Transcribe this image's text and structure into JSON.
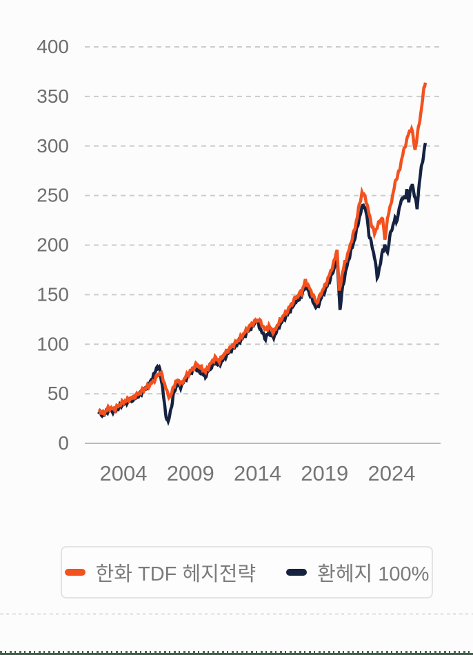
{
  "page": {
    "background": "#fcfcfc"
  },
  "legend": {
    "items": [
      {
        "label": "한화 TDF 헤지전략",
        "color": "#f3511e"
      },
      {
        "label": "환헤지 100%",
        "color": "#152240"
      }
    ]
  },
  "chart_data": {
    "type": "line",
    "title": "",
    "xlabel": "",
    "ylabel": "",
    "grid": "horizontal-dashed",
    "legend_position": "bottom",
    "y_ticks": [
      0,
      50,
      100,
      150,
      200,
      250,
      300,
      350,
      400
    ],
    "x_ticks": [
      2004,
      2009,
      2014,
      2019,
      2024
    ],
    "x_domain": [
      2002.15,
      2026.52
    ],
    "y_domain": [
      0,
      400
    ],
    "series": [
      {
        "name": "환헤지 100%",
        "color": "#152240",
        "points": [
          [
            2002.15,
            31
          ],
          [
            2002.51,
            28
          ],
          [
            2002.92,
            34
          ],
          [
            2003.33,
            32
          ],
          [
            2003.79,
            38
          ],
          [
            2004.31,
            42
          ],
          [
            2004.82,
            45
          ],
          [
            2005.34,
            50
          ],
          [
            2005.7,
            56
          ],
          [
            2006.01,
            62
          ],
          [
            2006.31,
            70
          ],
          [
            2006.52,
            78
          ],
          [
            2006.72,
            74
          ],
          [
            2006.93,
            55
          ],
          [
            2007.14,
            30
          ],
          [
            2007.34,
            21
          ],
          [
            2007.55,
            35
          ],
          [
            2007.75,
            50
          ],
          [
            2008.01,
            60
          ],
          [
            2008.27,
            57
          ],
          [
            2008.58,
            64
          ],
          [
            2008.94,
            70
          ],
          [
            2009.3,
            76
          ],
          [
            2009.71,
            72
          ],
          [
            2010.12,
            68
          ],
          [
            2010.48,
            76
          ],
          [
            2010.84,
            82
          ],
          [
            2011.15,
            79
          ],
          [
            2011.51,
            86
          ],
          [
            2011.87,
            92
          ],
          [
            2012.28,
            97
          ],
          [
            2012.69,
            103
          ],
          [
            2013.05,
            109
          ],
          [
            2013.41,
            115
          ],
          [
            2013.72,
            120
          ],
          [
            2013.92,
            124
          ],
          [
            2014.13,
            118
          ],
          [
            2014.33,
            112
          ],
          [
            2014.59,
            106
          ],
          [
            2014.85,
            112
          ],
          [
            2015.21,
            107
          ],
          [
            2015.52,
            116
          ],
          [
            2015.88,
            124
          ],
          [
            2016.24,
            130
          ],
          [
            2016.6,
            138
          ],
          [
            2016.91,
            144
          ],
          [
            2017.27,
            148
          ],
          [
            2017.57,
            160
          ],
          [
            2017.93,
            150
          ],
          [
            2018.24,
            140
          ],
          [
            2018.45,
            136
          ],
          [
            2018.76,
            147
          ],
          [
            2019.07,
            155
          ],
          [
            2019.37,
            164
          ],
          [
            2019.68,
            175
          ],
          [
            2019.94,
            188
          ],
          [
            2020.15,
            134
          ],
          [
            2020.35,
            158
          ],
          [
            2020.56,
            172
          ],
          [
            2020.76,
            184
          ],
          [
            2021.02,
            196
          ],
          [
            2021.28,
            208
          ],
          [
            2021.53,
            224
          ],
          [
            2021.89,
            242
          ],
          [
            2022.15,
            230
          ],
          [
            2022.31,
            211
          ],
          [
            2022.56,
            198
          ],
          [
            2022.77,
            185
          ],
          [
            2022.92,
            167
          ],
          [
            2023.18,
            182
          ],
          [
            2023.33,
            195
          ],
          [
            2023.49,
            199
          ],
          [
            2023.69,
            192
          ],
          [
            2023.85,
            208
          ],
          [
            2024.0,
            215
          ],
          [
            2024.1,
            220
          ],
          [
            2024.26,
            228
          ],
          [
            2024.36,
            222
          ],
          [
            2024.46,
            230
          ],
          [
            2024.62,
            240
          ],
          [
            2024.77,
            246
          ],
          [
            2024.87,
            250
          ],
          [
            2025.03,
            246
          ],
          [
            2025.13,
            256
          ],
          [
            2025.28,
            245
          ],
          [
            2025.44,
            258
          ],
          [
            2025.54,
            262
          ],
          [
            2025.7,
            250
          ],
          [
            2025.9,
            238
          ],
          [
            2026.06,
            262
          ],
          [
            2026.21,
            278
          ],
          [
            2026.37,
            290
          ],
          [
            2026.52,
            303
          ]
        ]
      },
      {
        "name": "한화 TDF 헤지전략",
        "color": "#f3511e",
        "points": [
          [
            2002.15,
            33
          ],
          [
            2002.51,
            30
          ],
          [
            2002.92,
            36
          ],
          [
            2003.33,
            34
          ],
          [
            2003.79,
            40
          ],
          [
            2004.31,
            44
          ],
          [
            2004.82,
            47
          ],
          [
            2005.34,
            52
          ],
          [
            2005.85,
            58
          ],
          [
            2006.21,
            62
          ],
          [
            2006.52,
            68
          ],
          [
            2006.78,
            72
          ],
          [
            2007.03,
            62
          ],
          [
            2007.29,
            50
          ],
          [
            2007.5,
            46
          ],
          [
            2007.75,
            58
          ],
          [
            2008.06,
            64
          ],
          [
            2008.32,
            60
          ],
          [
            2008.68,
            68
          ],
          [
            2009.09,
            74
          ],
          [
            2009.45,
            80
          ],
          [
            2009.81,
            76
          ],
          [
            2010.12,
            72
          ],
          [
            2010.48,
            80
          ],
          [
            2010.84,
            86
          ],
          [
            2011.15,
            83
          ],
          [
            2011.51,
            90
          ],
          [
            2011.87,
            95
          ],
          [
            2012.28,
            100
          ],
          [
            2012.69,
            106
          ],
          [
            2013.05,
            112
          ],
          [
            2013.41,
            118
          ],
          [
            2013.72,
            122
          ],
          [
            2014.08,
            125
          ],
          [
            2014.33,
            120
          ],
          [
            2014.59,
            114
          ],
          [
            2014.85,
            118
          ],
          [
            2015.21,
            112
          ],
          [
            2015.52,
            120
          ],
          [
            2015.88,
            128
          ],
          [
            2016.24,
            134
          ],
          [
            2016.6,
            142
          ],
          [
            2016.91,
            148
          ],
          [
            2017.27,
            152
          ],
          [
            2017.57,
            164
          ],
          [
            2017.93,
            155
          ],
          [
            2018.24,
            146
          ],
          [
            2018.45,
            142
          ],
          [
            2018.76,
            152
          ],
          [
            2019.07,
            160
          ],
          [
            2019.37,
            170
          ],
          [
            2019.68,
            182
          ],
          [
            2019.94,
            196
          ],
          [
            2020.09,
            152
          ],
          [
            2020.3,
            170
          ],
          [
            2020.51,
            182
          ],
          [
            2020.76,
            192
          ],
          [
            2021.02,
            205
          ],
          [
            2021.28,
            218
          ],
          [
            2021.53,
            236
          ],
          [
            2021.79,
            253
          ],
          [
            2022.05,
            248
          ],
          [
            2022.31,
            232
          ],
          [
            2022.56,
            218
          ],
          [
            2022.72,
            212
          ],
          [
            2022.97,
            220
          ],
          [
            2023.18,
            226
          ],
          [
            2023.33,
            227
          ],
          [
            2023.49,
            205
          ],
          [
            2023.69,
            226
          ],
          [
            2023.95,
            243
          ],
          [
            2024.1,
            250
          ],
          [
            2024.26,
            264
          ],
          [
            2024.46,
            270
          ],
          [
            2024.62,
            278
          ],
          [
            2024.77,
            288
          ],
          [
            2024.98,
            299
          ],
          [
            2025.13,
            306
          ],
          [
            2025.28,
            313
          ],
          [
            2025.49,
            318
          ],
          [
            2025.75,
            296
          ],
          [
            2026.0,
            318
          ],
          [
            2026.21,
            336
          ],
          [
            2026.41,
            358
          ],
          [
            2026.52,
            364
          ]
        ]
      }
    ]
  }
}
